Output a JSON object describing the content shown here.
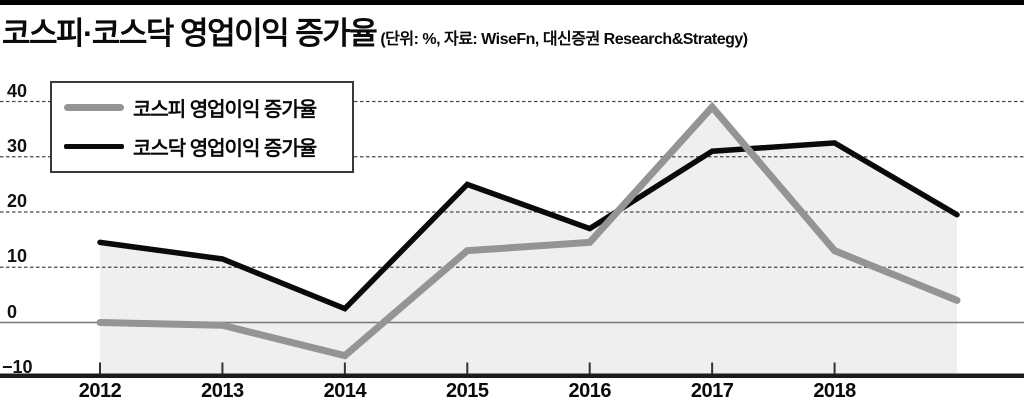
{
  "header": {
    "title": "코스피·코스닥 영업이익 증가율",
    "subtitle": "(단위: %, 자료: WiseFn, 대신증권 Research&Strategy)"
  },
  "legend": {
    "items": [
      {
        "label": "코스피 영업이익 증가율",
        "color": "#949494"
      },
      {
        "label": "코스닥 영업이익 증가율",
        "color": "#0a0a0a"
      }
    ]
  },
  "chart_data": {
    "type": "line",
    "title": "코스피·코스닥 영업이익 증가율",
    "unit": "%",
    "x_tick_labels": [
      "2012",
      "2013",
      "2014",
      "2015",
      "2016",
      "2017",
      "2018"
    ],
    "series": [
      {
        "name": "코스피 영업이익 증가율",
        "color": "#949494",
        "values": [
          0,
          -0.5,
          -6,
          13,
          14.5,
          39,
          13,
          4
        ]
      },
      {
        "name": "코스닥 영업이익 증가율",
        "color": "#0a0a0a",
        "values": [
          14.5,
          11.5,
          2.5,
          25,
          17,
          31,
          32.5,
          19.5
        ]
      }
    ],
    "y_ticks": [
      40,
      30,
      20,
      10,
      0,
      -10
    ],
    "y_tick_labels": [
      "40",
      "30",
      "20",
      "10",
      "0",
      "−10"
    ],
    "ylim": [
      -10,
      45
    ],
    "grid": "horizontal-dashed-above-zero-solid-at-zero",
    "area_fill": "#efefef",
    "legend_position": "top-left",
    "note_last_point_unlabeled": true
  },
  "colors": {
    "top_bar": "#000000",
    "baseline": "#1c1c1c",
    "gridline_dashed": "#4a4a4a",
    "gridline_zero": "#787878",
    "tick": "#333333"
  }
}
